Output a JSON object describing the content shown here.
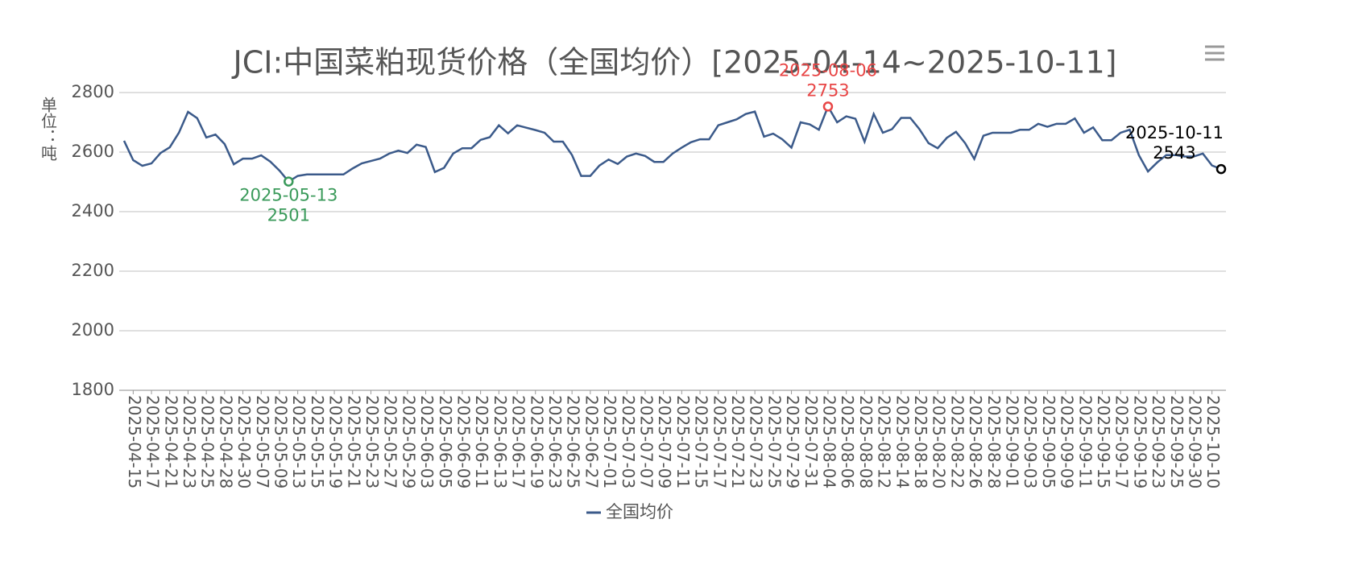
{
  "chart_data": {
    "type": "line",
    "title": "JCI:中国菜粕现货价格（全国均价）[2025-04-14~2025-10-11]",
    "y_label": "单位：吨",
    "ylim": [
      1800,
      2800
    ],
    "yticks": [
      1800,
      2000,
      2200,
      2400,
      2600,
      2800
    ],
    "grid": true,
    "legend_position": "bottom",
    "categories": [
      null,
      "2025-04-15",
      null,
      "2025-04-17",
      null,
      "2025-04-21",
      null,
      "2025-04-23",
      null,
      "2025-04-25",
      null,
      "2025-04-28",
      null,
      "2025-04-30",
      null,
      "2025-05-07",
      null,
      "2025-05-09",
      null,
      "2025-05-13",
      null,
      "2025-05-15",
      null,
      "2025-05-19",
      null,
      "2025-05-21",
      null,
      "2025-05-23",
      null,
      "2025-05-27",
      null,
      "2025-05-29",
      null,
      "2025-06-03",
      null,
      "2025-06-05",
      null,
      "2025-06-09",
      null,
      "2025-06-11",
      null,
      "2025-06-13",
      null,
      "2025-06-17",
      null,
      "2025-06-19",
      null,
      "2025-06-23",
      null,
      "2025-06-25",
      null,
      "2025-06-27",
      null,
      "2025-07-01",
      null,
      "2025-07-03",
      null,
      "2025-07-07",
      null,
      "2025-07-09",
      null,
      "2025-07-11",
      null,
      "2025-07-15",
      null,
      "2025-07-17",
      null,
      "2025-07-21",
      null,
      "2025-07-23",
      null,
      "2025-07-25",
      null,
      "2025-07-29",
      null,
      "2025-07-31",
      null,
      "2025-08-04",
      null,
      "2025-08-06",
      null,
      "2025-08-08",
      null,
      "2025-08-12",
      null,
      "2025-08-14",
      null,
      "2025-08-18",
      null,
      "2025-08-20",
      null,
      "2025-08-22",
      null,
      "2025-08-26",
      null,
      "2025-08-28",
      null,
      "2025-09-01",
      null,
      "2025-09-03",
      null,
      "2025-09-05",
      null,
      "2025-09-09",
      null,
      "2025-09-11",
      null,
      "2025-09-15",
      null,
      "2025-09-17",
      null,
      "2025-09-19",
      null,
      "2025-09-23",
      null,
      "2025-09-25",
      null,
      "2025-09-30",
      null,
      "2025-10-10",
      null
    ],
    "series": [
      {
        "name": "全国均价",
        "color": "#3b5a8a",
        "values": [
          2638,
          2573,
          2554,
          2562,
          2597,
          2616,
          2665,
          2735,
          2714,
          2649,
          2659,
          2627,
          2559,
          2578,
          2578,
          2589,
          2568,
          2538,
          2501,
          2520,
          2525,
          2525,
          2525,
          2525,
          2525,
          2545,
          2562,
          2570,
          2578,
          2595,
          2605,
          2597,
          2625,
          2617,
          2533,
          2547,
          2595,
          2613,
          2613,
          2641,
          2650,
          2690,
          2663,
          2690,
          2682,
          2674,
          2665,
          2635,
          2635,
          2590,
          2520,
          2520,
          2555,
          2575,
          2560,
          2585,
          2595,
          2587,
          2567,
          2567,
          2595,
          2615,
          2633,
          2643,
          2643,
          2690,
          2700,
          2710,
          2728,
          2736,
          2652,
          2662,
          2643,
          2615,
          2700,
          2693,
          2675,
          2753,
          2700,
          2720,
          2712,
          2635,
          2728,
          2665,
          2677,
          2715,
          2715,
          2677,
          2630,
          2613,
          2648,
          2668,
          2630,
          2577,
          2655,
          2665,
          2665,
          2665,
          2675,
          2675,
          2695,
          2685,
          2695,
          2695,
          2713,
          2665,
          2683,
          2640,
          2640,
          2665,
          2675,
          2590,
          2535,
          2565,
          2590,
          2590,
          2585,
          2585,
          2595,
          2555,
          2543
        ]
      }
    ],
    "annotations": [
      {
        "kind": "min",
        "date": "2025-05-13",
        "value": 2501,
        "color": "#3a9a5a"
      },
      {
        "kind": "max",
        "date": "2025-08-06",
        "value": 2753,
        "color": "#e84545"
      },
      {
        "kind": "last",
        "date": "2025-10-11",
        "value": 2543,
        "color": "#000000"
      }
    ]
  }
}
